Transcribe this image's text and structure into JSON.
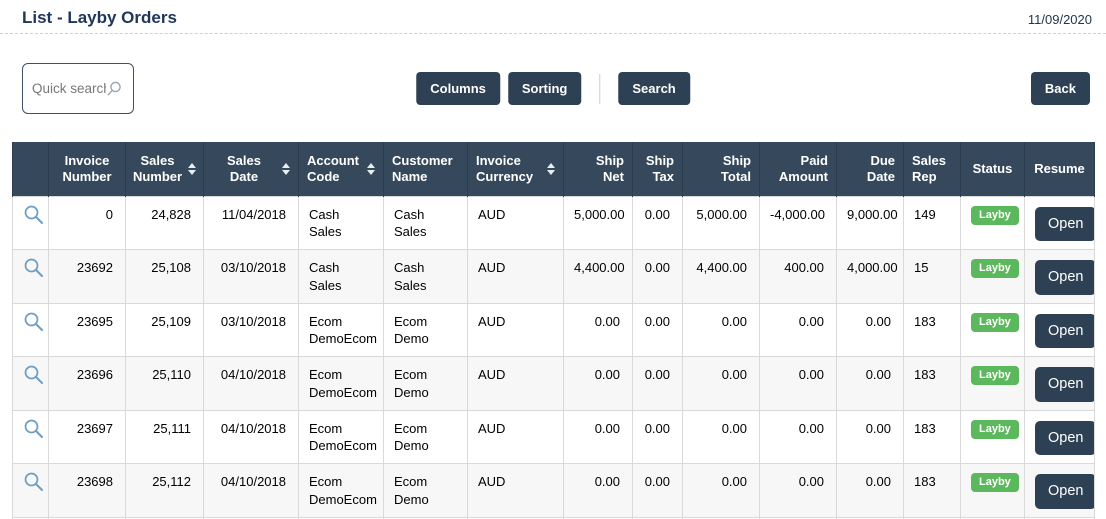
{
  "page": {
    "title": "List - Layby Orders",
    "date": "11/09/2020"
  },
  "toolbar": {
    "quick_search_placeholder": "Quick search",
    "columns_label": "Columns",
    "sorting_label": "Sorting",
    "search_label": "Search",
    "back_label": "Back"
  },
  "colors": {
    "navy_button": "#2e4154",
    "header_background": "#36495c",
    "status_green": "#5cb85c",
    "row_magnifier_blue": "#6f9dc1",
    "title_navy": "#20375a"
  },
  "table": {
    "columns": [
      {
        "key": "icon",
        "label": "",
        "sortable": false
      },
      {
        "key": "invoice_number",
        "label": "Invoice Number",
        "sortable": false
      },
      {
        "key": "sales_number",
        "label": "Sales Number",
        "sortable": true
      },
      {
        "key": "sales_date",
        "label": "Sales Date",
        "sortable": true
      },
      {
        "key": "account_code",
        "label": "Account Code",
        "sortable": true
      },
      {
        "key": "customer_name",
        "label": "Customer Name",
        "sortable": false
      },
      {
        "key": "invoice_currency",
        "label": "Invoice Currency",
        "sortable": true
      },
      {
        "key": "ship_net",
        "label": "Ship Net",
        "sortable": false
      },
      {
        "key": "ship_tax",
        "label": "Ship Tax",
        "sortable": false
      },
      {
        "key": "ship_total",
        "label": "Ship Total",
        "sortable": false
      },
      {
        "key": "paid_amount",
        "label": "Paid Amount",
        "sortable": false
      },
      {
        "key": "due_date",
        "label": "Due Date",
        "sortable": false
      },
      {
        "key": "sales_rep",
        "label": "Sales Rep",
        "sortable": false
      },
      {
        "key": "status",
        "label": "Status",
        "sortable": false
      },
      {
        "key": "resume",
        "label": "Resume",
        "sortable": false
      }
    ],
    "rows": [
      {
        "invoice_number": "0",
        "sales_number": "24,828",
        "sales_date": "11/04/2018",
        "account_code": "Cash Sales",
        "customer_name": "Cash Sales",
        "invoice_currency": "AUD",
        "ship_net": "5,000.00",
        "ship_tax": "0.00",
        "ship_total": "5,000.00",
        "paid_amount": "-4,000.00",
        "due_date": "9,000.00",
        "sales_rep": "149",
        "status": "Layby",
        "resume": "Open"
      },
      {
        "invoice_number": "23692",
        "sales_number": "25,108",
        "sales_date": "03/10/2018",
        "account_code": "Cash Sales",
        "customer_name": "Cash Sales",
        "invoice_currency": "AUD",
        "ship_net": "4,400.00",
        "ship_tax": "0.00",
        "ship_total": "4,400.00",
        "paid_amount": "400.00",
        "due_date": "4,000.00",
        "sales_rep": "15",
        "status": "Layby",
        "resume": "Open"
      },
      {
        "invoice_number": "23695",
        "sales_number": "25,109",
        "sales_date": "03/10/2018",
        "account_code": "Ecom DemoEcom",
        "customer_name": "Ecom Demo",
        "invoice_currency": "AUD",
        "ship_net": "0.00",
        "ship_tax": "0.00",
        "ship_total": "0.00",
        "paid_amount": "0.00",
        "due_date": "0.00",
        "sales_rep": "183",
        "status": "Layby",
        "resume": "Open"
      },
      {
        "invoice_number": "23696",
        "sales_number": "25,110",
        "sales_date": "04/10/2018",
        "account_code": "Ecom DemoEcom",
        "customer_name": "Ecom Demo",
        "invoice_currency": "AUD",
        "ship_net": "0.00",
        "ship_tax": "0.00",
        "ship_total": "0.00",
        "paid_amount": "0.00",
        "due_date": "0.00",
        "sales_rep": "183",
        "status": "Layby",
        "resume": "Open"
      },
      {
        "invoice_number": "23697",
        "sales_number": "25,111",
        "sales_date": "04/10/2018",
        "account_code": "Ecom DemoEcom",
        "customer_name": "Ecom Demo",
        "invoice_currency": "AUD",
        "ship_net": "0.00",
        "ship_tax": "0.00",
        "ship_total": "0.00",
        "paid_amount": "0.00",
        "due_date": "0.00",
        "sales_rep": "183",
        "status": "Layby",
        "resume": "Open"
      },
      {
        "invoice_number": "23698",
        "sales_number": "25,112",
        "sales_date": "04/10/2018",
        "account_code": "Ecom DemoEcom",
        "customer_name": "Ecom Demo",
        "invoice_currency": "AUD",
        "ship_net": "0.00",
        "ship_tax": "0.00",
        "ship_total": "0.00",
        "paid_amount": "0.00",
        "due_date": "0.00",
        "sales_rep": "183",
        "status": "Layby",
        "resume": "Open"
      }
    ]
  }
}
